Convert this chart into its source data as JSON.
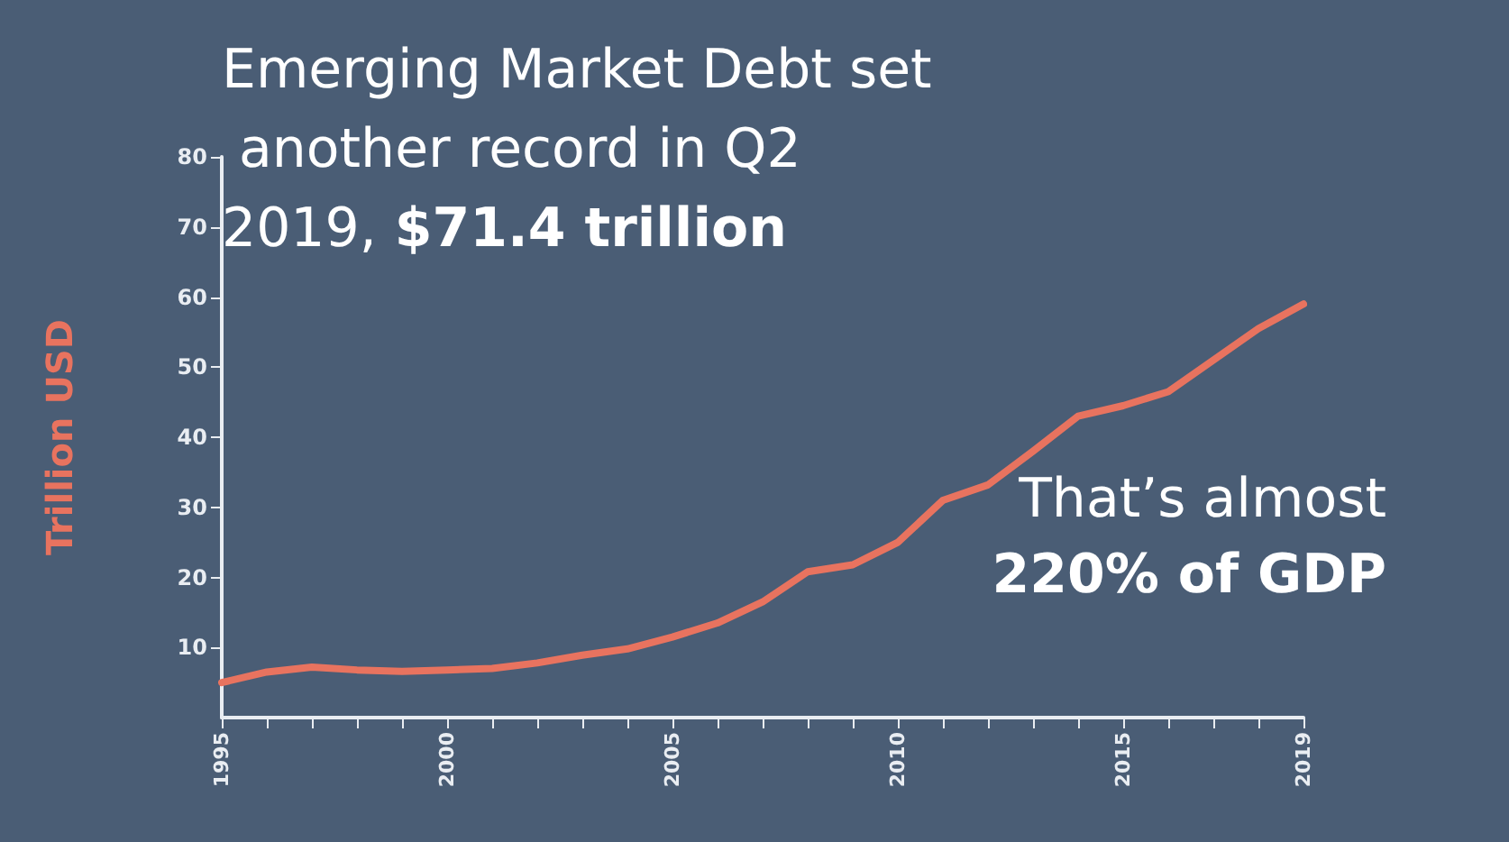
{
  "chart_data": {
    "type": "line",
    "title": "Emerging Market Debt set another record in Q2 2019,",
    "subtitle": "$71.4 trillion",
    "ylabel": "Trillion USD",
    "annotations": [
      "That’s almost",
      "220% of GDP"
    ],
    "x": [
      1995,
      1996,
      1997,
      1998,
      1999,
      2000,
      2001,
      2002,
      2003,
      2004,
      2005,
      2006,
      2007,
      2008,
      2009,
      2010,
      2011,
      2012,
      2013,
      2014,
      2015,
      2016,
      2017,
      2018,
      2019
    ],
    "series": [
      {
        "color": "#e8735f",
        "values": [
          5,
          6.5,
          7.2,
          6.8,
          6.6,
          6.8,
          7,
          7.8,
          8.9,
          9.8,
          11.5,
          13.5,
          16.5,
          20.8,
          21.8,
          25,
          31,
          33.2,
          38,
          43,
          44.5,
          46.5,
          51,
          55.5,
          59
        ]
      }
    ],
    "xlim": [
      1995,
      2019
    ],
    "xticks": [
      1995,
      {
        "value": 1996,
        "label": null
      },
      {
        "value": 1997,
        "label": null
      },
      {
        "value": 1998,
        "label": null
      },
      {
        "value": 1999,
        "label": null
      },
      2000,
      {
        "value": 2001,
        "label": null
      },
      {
        "value": 2002,
        "label": null
      },
      {
        "value": 2003,
        "label": null
      },
      {
        "value": 2004,
        "label": null
      },
      2005,
      {
        "value": 2006,
        "label": null
      },
      {
        "value": 2007,
        "label": null
      },
      {
        "value": 2008,
        "label": null
      },
      {
        "value": 2009,
        "label": null
      },
      2010,
      {
        "value": 2011,
        "label": null
      },
      {
        "value": 2012,
        "label": null
      },
      {
        "value": 2013,
        "label": null
      },
      {
        "value": 2014,
        "label": null
      },
      2015,
      {
        "value": 2016,
        "label": null
      },
      {
        "value": 2017,
        "label": null
      },
      {
        "value": 2018,
        "label": null
      },
      2019
    ],
    "ylim": [
      0,
      80
    ],
    "yticks": [
      10,
      20,
      30,
      40,
      50,
      60,
      70,
      80
    ],
    "grid": false,
    "marker": "none",
    "line_style": "solid"
  }
}
